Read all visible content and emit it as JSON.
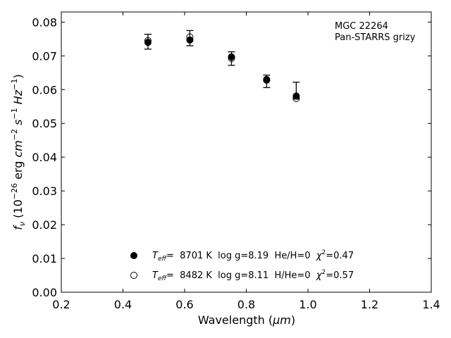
{
  "chart_data": {
    "type": "scatter",
    "xlabel_text": "Wavelength (",
    "xlabel_unit": "μm",
    "xlabel_close": ")",
    "ylabel_f": "f",
    "ylabel_nu": "ν",
    "ylabel_open": " (10",
    "ylabel_exp": "−26",
    "ylabel_erg": " erg ",
    "ylabel_cm": "cm",
    "ylabel_cm_exp": "−2",
    "ylabel_s": "s",
    "ylabel_s_exp": "−1",
    "ylabel_hz": "Hz",
    "ylabel_hz_exp": "−1",
    "ylabel_close": ")",
    "xlim": [
      0.2,
      1.4
    ],
    "ylim": [
      0.0,
      0.083
    ],
    "x_ticks": [
      0.2,
      0.4,
      0.6,
      0.8,
      1.0,
      1.2,
      1.4
    ],
    "x_tick_labels": [
      "0.2",
      "0.4",
      "0.6",
      "0.8",
      "1.0",
      "1.2",
      "1.4"
    ],
    "y_ticks": [
      0.0,
      0.01,
      0.02,
      0.03,
      0.04,
      0.05,
      0.06,
      0.07,
      0.08
    ],
    "y_tick_labels": [
      "0.00",
      "0.01",
      "0.02",
      "0.03",
      "0.04",
      "0.05",
      "0.06",
      "0.07",
      "0.08"
    ],
    "annotation_lines": [
      "MGC 22264",
      "Pan-STARRS grizy"
    ],
    "observed": {
      "x": [
        0.481,
        0.617,
        0.752,
        0.866,
        0.962
      ],
      "y": [
        0.0742,
        0.0752,
        0.0692,
        0.0626,
        0.0594
      ],
      "yerr_low": [
        0.072,
        0.073,
        0.0672,
        0.0606,
        0.0572
      ],
      "yerr_high": [
        0.0764,
        0.0775,
        0.0712,
        0.0643,
        0.0622
      ]
    },
    "series": [
      {
        "marker": "filled-circle",
        "x": [
          0.481,
          0.617,
          0.752,
          0.866,
          0.962
        ],
        "y": [
          0.074,
          0.0747,
          0.0697,
          0.063,
          0.0581
        ],
        "legend": {
          "teff_label": "T",
          "teff_sub": "eff",
          "pre_chi": "=  8701 K  log g=8.19  He/H=0  ",
          "chi": "χ",
          "chi_exp": "2",
          "chi_val": "=0.47"
        }
      },
      {
        "marker": "open-circle",
        "x": [
          0.481,
          0.617,
          0.752,
          0.866,
          0.962
        ],
        "y": [
          0.0745,
          0.0756,
          0.0693,
          0.0628,
          0.0574
        ],
        "legend": {
          "teff_label": "T",
          "teff_sub": "eff",
          "pre_chi": "=  8482 K  log g=8.11  H/He=0  ",
          "chi": "χ",
          "chi_exp": "2",
          "chi_val": "=0.57"
        }
      }
    ],
    "colors": {
      "marker": "#000000",
      "axes": "#000000",
      "background": "#ffffff"
    }
  }
}
